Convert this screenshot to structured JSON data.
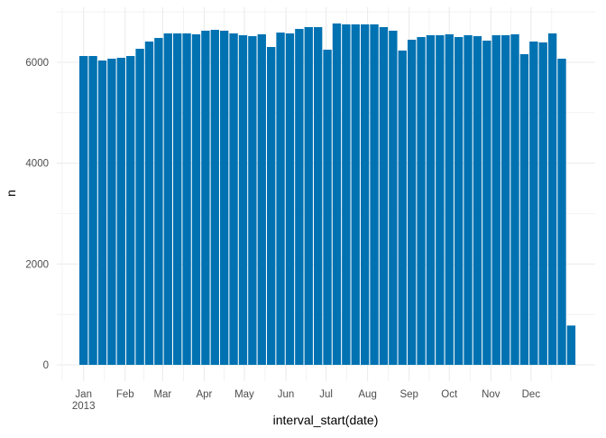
{
  "chart_data": {
    "type": "bar",
    "title": "",
    "xlabel": "interval_start(date)",
    "ylabel": "n",
    "x_start_date": "2013-01-01",
    "x_interval": "week",
    "values": [
      6125,
      6125,
      6036,
      6072,
      6090,
      6125,
      6268,
      6412,
      6483,
      6573,
      6573,
      6573,
      6555,
      6627,
      6644,
      6627,
      6573,
      6537,
      6519,
      6555,
      6304,
      6590,
      6573,
      6662,
      6698,
      6698,
      6250,
      6770,
      6752,
      6752,
      6752,
      6752,
      6698,
      6627,
      6233,
      6448,
      6501,
      6537,
      6537,
      6555,
      6501,
      6537,
      6519,
      6430,
      6537,
      6537,
      6555,
      6161,
      6412,
      6394,
      6573,
      6072,
      780
    ],
    "ylim": [
      -340,
      7080
    ],
    "yticks": [
      "0",
      "2000",
      "4000",
      "6000"
    ],
    "xticks": [
      "Jan",
      "Feb",
      "Mar",
      "Apr",
      "May",
      "Jun",
      "Jul",
      "Aug",
      "Sep",
      "Oct",
      "Nov",
      "Dec"
    ],
    "xtick_year": "2013",
    "grid": true,
    "legend": "none",
    "bar_color": "#0072B2",
    "grid_color": "#EBEBEB",
    "text_color": "#4D4D4D"
  }
}
